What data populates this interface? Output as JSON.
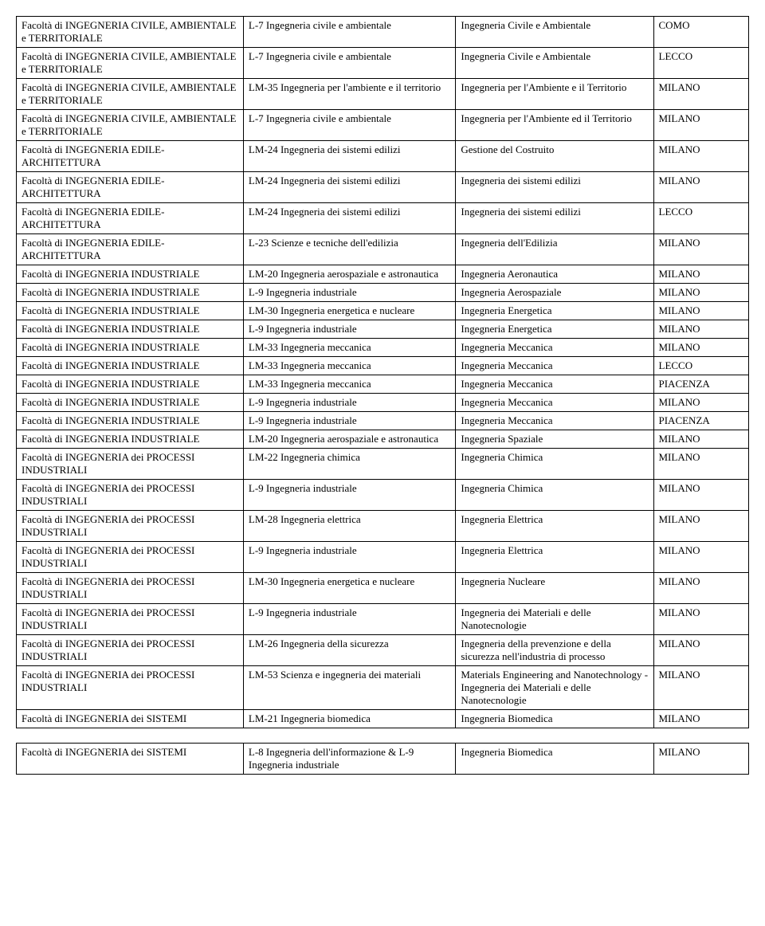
{
  "table1": {
    "rows": [
      [
        "Facoltà di INGEGNERIA CIVILE, AMBIENTALE e TERRITORIALE",
        "L-7 Ingegneria civile e ambientale",
        "Ingegneria Civile e Ambientale",
        "COMO"
      ],
      [
        "Facoltà di INGEGNERIA CIVILE, AMBIENTALE e TERRITORIALE",
        "L-7 Ingegneria civile e ambientale",
        "Ingegneria Civile e Ambientale",
        "LECCO"
      ],
      [
        "Facoltà di INGEGNERIA CIVILE, AMBIENTALE e TERRITORIALE",
        "LM-35 Ingegneria per l'ambiente e il territorio",
        "Ingegneria per l'Ambiente e il Territorio",
        "MILANO"
      ],
      [
        "Facoltà di INGEGNERIA CIVILE, AMBIENTALE e TERRITORIALE",
        "L-7 Ingegneria civile e ambientale",
        "Ingegneria per l'Ambiente ed il Territorio",
        "MILANO"
      ],
      [
        "Facoltà di INGEGNERIA EDILE-ARCHITETTURA",
        "LM-24 Ingegneria dei sistemi edilizi",
        "Gestione del Costruito",
        "MILANO"
      ],
      [
        "Facoltà di INGEGNERIA EDILE-ARCHITETTURA",
        "LM-24 Ingegneria dei sistemi edilizi",
        "Ingegneria dei sistemi edilizi",
        "MILANO"
      ],
      [
        "Facoltà di INGEGNERIA EDILE-ARCHITETTURA",
        "LM-24 Ingegneria dei sistemi edilizi",
        "Ingegneria dei sistemi edilizi",
        "LECCO"
      ],
      [
        "Facoltà di INGEGNERIA EDILE-ARCHITETTURA",
        "L-23 Scienze e tecniche dell'edilizia",
        "Ingegneria dell'Edilizia",
        "MILANO"
      ],
      [
        "Facoltà di INGEGNERIA INDUSTRIALE",
        "LM-20 Ingegneria aerospaziale e astronautica",
        "Ingegneria Aeronautica",
        "MILANO"
      ],
      [
        "Facoltà di INGEGNERIA INDUSTRIALE",
        "L-9 Ingegneria industriale",
        "Ingegneria Aerospaziale",
        "MILANO"
      ],
      [
        "Facoltà di INGEGNERIA INDUSTRIALE",
        "LM-30 Ingegneria energetica e nucleare",
        "Ingegneria Energetica",
        "MILANO"
      ],
      [
        "Facoltà di INGEGNERIA INDUSTRIALE",
        "L-9 Ingegneria industriale",
        "Ingegneria Energetica",
        "MILANO"
      ],
      [
        "Facoltà di INGEGNERIA INDUSTRIALE",
        "LM-33 Ingegneria meccanica",
        "Ingegneria Meccanica",
        "MILANO"
      ],
      [
        "Facoltà di INGEGNERIA INDUSTRIALE",
        "LM-33 Ingegneria meccanica",
        "Ingegneria Meccanica",
        "LECCO"
      ],
      [
        "Facoltà di INGEGNERIA INDUSTRIALE",
        "LM-33 Ingegneria meccanica",
        "Ingegneria Meccanica",
        "PIACENZA"
      ],
      [
        "Facoltà di INGEGNERIA INDUSTRIALE",
        "L-9 Ingegneria industriale",
        "Ingegneria Meccanica",
        "MILANO"
      ],
      [
        "Facoltà di INGEGNERIA INDUSTRIALE",
        "L-9 Ingegneria industriale",
        "Ingegneria Meccanica",
        "PIACENZA"
      ],
      [
        "Facoltà di INGEGNERIA INDUSTRIALE",
        "LM-20 Ingegneria aerospaziale e astronautica",
        "Ingegneria Spaziale",
        "MILANO"
      ],
      [
        "Facoltà di INGEGNERIA dei PROCESSI INDUSTRIALI",
        "LM-22 Ingegneria chimica",
        "Ingegneria Chimica",
        "MILANO"
      ],
      [
        "Facoltà di INGEGNERIA dei PROCESSI INDUSTRIALI",
        "L-9 Ingegneria industriale",
        "Ingegneria Chimica",
        "MILANO"
      ],
      [
        "Facoltà di INGEGNERIA dei PROCESSI INDUSTRIALI",
        "LM-28 Ingegneria elettrica",
        "Ingegneria Elettrica",
        "MILANO"
      ],
      [
        "Facoltà di INGEGNERIA dei PROCESSI INDUSTRIALI",
        "L-9 Ingegneria industriale",
        "Ingegneria Elettrica",
        "MILANO"
      ],
      [
        "Facoltà di INGEGNERIA dei PROCESSI INDUSTRIALI",
        "LM-30 Ingegneria energetica e nucleare",
        "Ingegneria Nucleare",
        "MILANO"
      ],
      [
        "Facoltà di INGEGNERIA dei PROCESSI INDUSTRIALI",
        "L-9 Ingegneria industriale",
        "Ingegneria dei Materiali e delle Nanotecnologie",
        "MILANO"
      ],
      [
        "Facoltà di INGEGNERIA dei PROCESSI INDUSTRIALI",
        "LM-26 Ingegneria della sicurezza",
        "Ingegneria della prevenzione e della sicurezza nell'industria di processo",
        "MILANO"
      ],
      [
        "Facoltà di INGEGNERIA dei PROCESSI INDUSTRIALI",
        "LM-53 Scienza e ingegneria dei materiali",
        "Materials Engineering and Nanotechnology - Ingegneria dei Materiali e delle Nanotecnologie",
        "MILANO"
      ],
      [
        "Facoltà di INGEGNERIA dei SISTEMI",
        "LM-21 Ingegneria biomedica",
        "Ingegneria Biomedica",
        "MILANO"
      ]
    ]
  },
  "table2": {
    "rows": [
      [
        "Facoltà di INGEGNERIA dei SISTEMI",
        "L-8 Ingegneria dell'informazione & L-9 Ingegneria industriale",
        "Ingegneria Biomedica",
        "MILANO"
      ]
    ]
  }
}
